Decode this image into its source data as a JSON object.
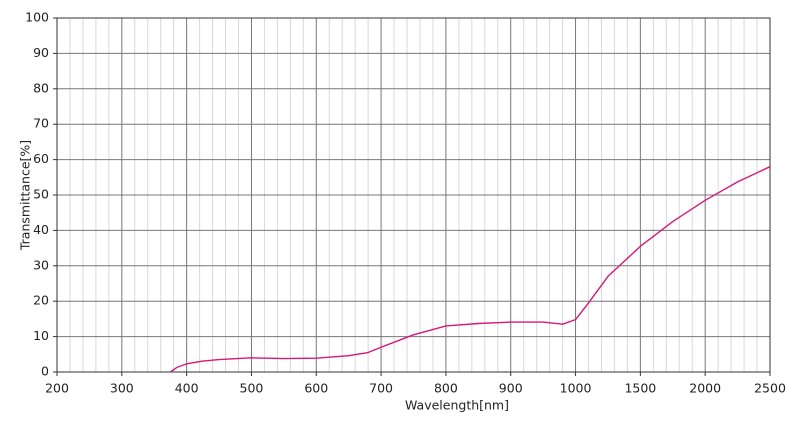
{
  "chart_data": {
    "type": "line",
    "xlabel": "Wavelength[nm]",
    "ylabel": "Transmittance[%]",
    "x": [
      375,
      385,
      400,
      425,
      450,
      500,
      550,
      600,
      650,
      680,
      700,
      750,
      800,
      850,
      900,
      950,
      980,
      1000,
      1100,
      1250,
      1500,
      1750,
      2000,
      2250,
      2500
    ],
    "series": [
      {
        "name": "Transmittance",
        "color": "#d4197a",
        "values": [
          0,
          1.3,
          2.3,
          3.1,
          3.5,
          4.0,
          3.8,
          3.9,
          4.6,
          5.5,
          7.0,
          10.5,
          13.0,
          13.7,
          14.1,
          14.1,
          13.5,
          14.8,
          19.5,
          27.0,
          35.5,
          42.5,
          48.5,
          53.7,
          58.0
        ]
      }
    ],
    "xlim": [
      200,
      2500
    ],
    "xticks": [
      200,
      300,
      400,
      500,
      600,
      700,
      800,
      900,
      1000,
      1500,
      2000,
      2500
    ],
    "ylim": [
      0,
      100
    ],
    "yticks": [
      0,
      10,
      20,
      30,
      40,
      50,
      60,
      70,
      80,
      90,
      100
    ],
    "grid": true
  }
}
